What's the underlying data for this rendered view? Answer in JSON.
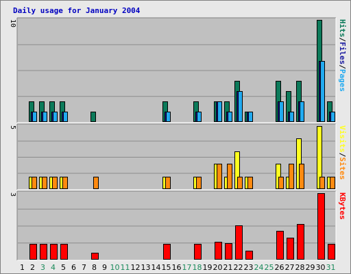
{
  "chart_data": {
    "type": "bar",
    "title": "Daily usage for January 2004",
    "categories": [
      "1",
      "2",
      "3",
      "4",
      "5",
      "6",
      "7",
      "8",
      "9",
      "10",
      "11",
      "12",
      "13",
      "14",
      "15",
      "16",
      "17",
      "18",
      "19",
      "20",
      "21",
      "22",
      "23",
      "24",
      "25",
      "26",
      "27",
      "28",
      "29",
      "30",
      "31"
    ],
    "weekend_days": [
      3,
      4,
      10,
      11,
      17,
      18,
      24,
      25,
      31
    ],
    "colors": {
      "hits": "#0c7a5a",
      "files": "#22aaf0",
      "pages": "#1a1aa0",
      "visits": "#ff8a10",
      "sites": "#ffff20",
      "kbytes": "#ff0000",
      "weekday_label": "#000000",
      "weekend_label": "#1a8a5a",
      "title": "#0000c0",
      "plot_bg": "#c0c0c0"
    },
    "panels": [
      {
        "id": "hits",
        "ymax_label": "10",
        "ylim": [
          0,
          10
        ],
        "legend": [
          {
            "text": "Pages",
            "color": "#22aaf0"
          },
          {
            "text": "/",
            "color": "#000000"
          },
          {
            "text": "Files",
            "color": "#1a1aa0"
          },
          {
            "text": "/",
            "color": "#000000"
          },
          {
            "text": "Hits",
            "color": "#0c7a5a"
          }
        ],
        "series": [
          {
            "name": "Hits",
            "values": [
              0,
              2,
              2,
              2,
              2,
              0,
              0,
              1,
              0,
              0,
              0,
              0,
              0,
              0,
              2,
              0,
              0,
              2,
              0,
              2,
              2,
              4,
              1,
              0,
              0,
              4,
              3,
              4,
              0,
              10,
              2
            ]
          },
          {
            "name": "Files",
            "values": [
              0,
              1,
              1,
              1,
              1,
              0,
              0,
              0,
              0,
              0,
              0,
              0,
              0,
              0,
              1,
              0,
              0,
              1,
              0,
              2,
              1,
              3,
              1,
              0,
              0,
              2,
              1,
              2,
              0,
              6,
              1
            ]
          },
          {
            "name": "Pages",
            "values": [
              0,
              1,
              1,
              1,
              1,
              0,
              0,
              0,
              0,
              0,
              0,
              0,
              0,
              0,
              1,
              0,
              0,
              1,
              0,
              2,
              1,
              3,
              1,
              0,
              0,
              2,
              1,
              2,
              0,
              6,
              1
            ]
          }
        ]
      },
      {
        "id": "visits",
        "ymax_label": "5",
        "ylim": [
          0,
          5
        ],
        "legend": [
          {
            "text": "Sites",
            "color": "#ff8a10"
          },
          {
            "text": "/",
            "color": "#000000"
          },
          {
            "text": "Visits",
            "color": "#ffff20"
          }
        ],
        "series": [
          {
            "name": "Visits",
            "values": [
              0,
              1,
              1,
              1,
              1,
              0,
              0,
              0,
              0,
              0,
              0,
              0,
              0,
              0,
              1,
              0,
              0,
              1,
              0,
              2,
              1,
              3,
              1,
              0,
              0,
              2,
              1,
              4,
              0,
              5,
              1
            ]
          },
          {
            "name": "Sites",
            "values": [
              0,
              1,
              1,
              1,
              1,
              0,
              0,
              1,
              0,
              0,
              0,
              0,
              0,
              0,
              1,
              0,
              0,
              1,
              0,
              2,
              2,
              1,
              1,
              0,
              0,
              1,
              2,
              2,
              0,
              1,
              1
            ]
          }
        ]
      },
      {
        "id": "kbytes",
        "ymax_label": "3",
        "ylim": [
          0,
          3
        ],
        "legend": [
          {
            "text": "KBytes",
            "color": "#ff0000"
          }
        ],
        "series": [
          {
            "name": "KBytes",
            "values": [
              0,
              0.7,
              0.7,
              0.7,
              0.7,
              0,
              0,
              0.3,
              0,
              0,
              0,
              0,
              0,
              0,
              0.7,
              0,
              0,
              0.7,
              0,
              0.8,
              0.75,
              1.55,
              0.4,
              0,
              0,
              1.3,
              1,
              1.6,
              0,
              3,
              0.7
            ]
          }
        ]
      }
    ]
  }
}
